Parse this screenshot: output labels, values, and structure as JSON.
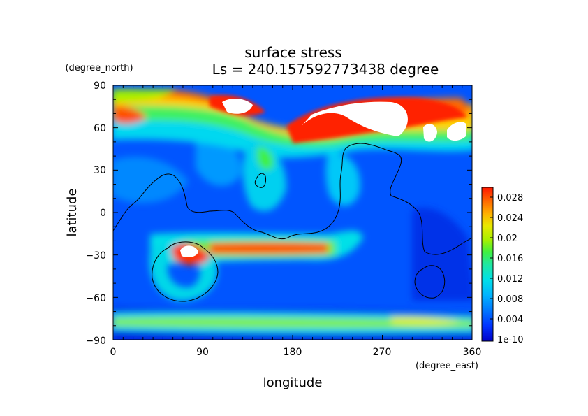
{
  "chart_data": {
    "type": "heatmap",
    "title": "surface stress",
    "subtitle": "Ls = 240.157592773438 degree",
    "xlabel": "longitude",
    "ylabel": "latitude",
    "xunit": "(degree_east)",
    "yunit": "(degree_north)",
    "xlim": [
      0,
      360
    ],
    "ylim": [
      -90,
      90
    ],
    "xticks": [
      "0",
      "90",
      "180",
      "270",
      "360"
    ],
    "yticks": [
      "90",
      "60",
      "30",
      "0",
      "−30",
      "−60",
      "−90"
    ],
    "colorbar": {
      "labels": [
        "0.028",
        "0.024",
        "0.02",
        "0.016",
        "0.012",
        "0.008",
        "0.004",
        "1e-10"
      ],
      "min": 0,
      "max": 0.03,
      "colors": [
        "#0000c8",
        "#0033ff",
        "#0077ff",
        "#00b4ff",
        "#00e0e8",
        "#20e8a0",
        "#40f040",
        "#a8f000",
        "#e8e800",
        "#ffb000",
        "#ff6000",
        "#ff1800"
      ]
    },
    "features": [
      {
        "type": "max",
        "lon": 220,
        "lat": 70,
        "value": 0.031
      },
      {
        "type": "max",
        "lon": 300,
        "lat": 68,
        "value": 0.03
      },
      {
        "type": "max",
        "lon": 120,
        "lat": 74,
        "value": 0.03
      },
      {
        "type": "max",
        "lon": 75,
        "lat": -38,
        "value": 0.03
      },
      {
        "type": "max",
        "lon": 10,
        "lat": 67,
        "value": 0.024
      }
    ]
  }
}
